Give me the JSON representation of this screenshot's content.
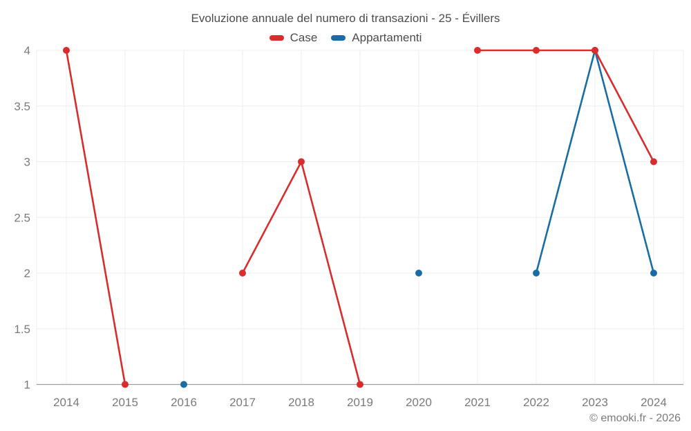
{
  "header": {
    "title": "Evoluzione annuale del numero di transazioni - 25 - Évillers"
  },
  "legend": {
    "items": [
      {
        "label": "Case",
        "color": "#d92c2c"
      },
      {
        "label": "Appartamenti",
        "color": "#1a6ca4"
      }
    ]
  },
  "footer": {
    "credit": "© emooki.fr - 2026"
  },
  "chart_data": {
    "type": "line",
    "title": "Evoluzione annuale del numero di transazioni - 25 - Évillers",
    "x": [
      2014,
      2015,
      2016,
      2017,
      2018,
      2019,
      2020,
      2021,
      2022,
      2023,
      2024
    ],
    "series": [
      {
        "name": "Case",
        "color": "#d92c2c",
        "values": [
          4,
          1,
          null,
          2,
          3,
          1,
          null,
          4,
          4,
          4,
          3
        ]
      },
      {
        "name": "Appartamenti",
        "color": "#1a6ca4",
        "values": [
          null,
          null,
          1,
          null,
          null,
          null,
          2,
          null,
          2,
          4,
          2
        ]
      }
    ],
    "xlabel": "",
    "ylabel": "",
    "ylim": [
      1,
      4
    ],
    "yticks": [
      1,
      1.5,
      2,
      2.5,
      3,
      3.5,
      4
    ],
    "grid": true,
    "legend_position": "top",
    "grid_color": "#ececec",
    "axis_color": "#9e9e9e",
    "tick_color": "#7a7a7a"
  }
}
